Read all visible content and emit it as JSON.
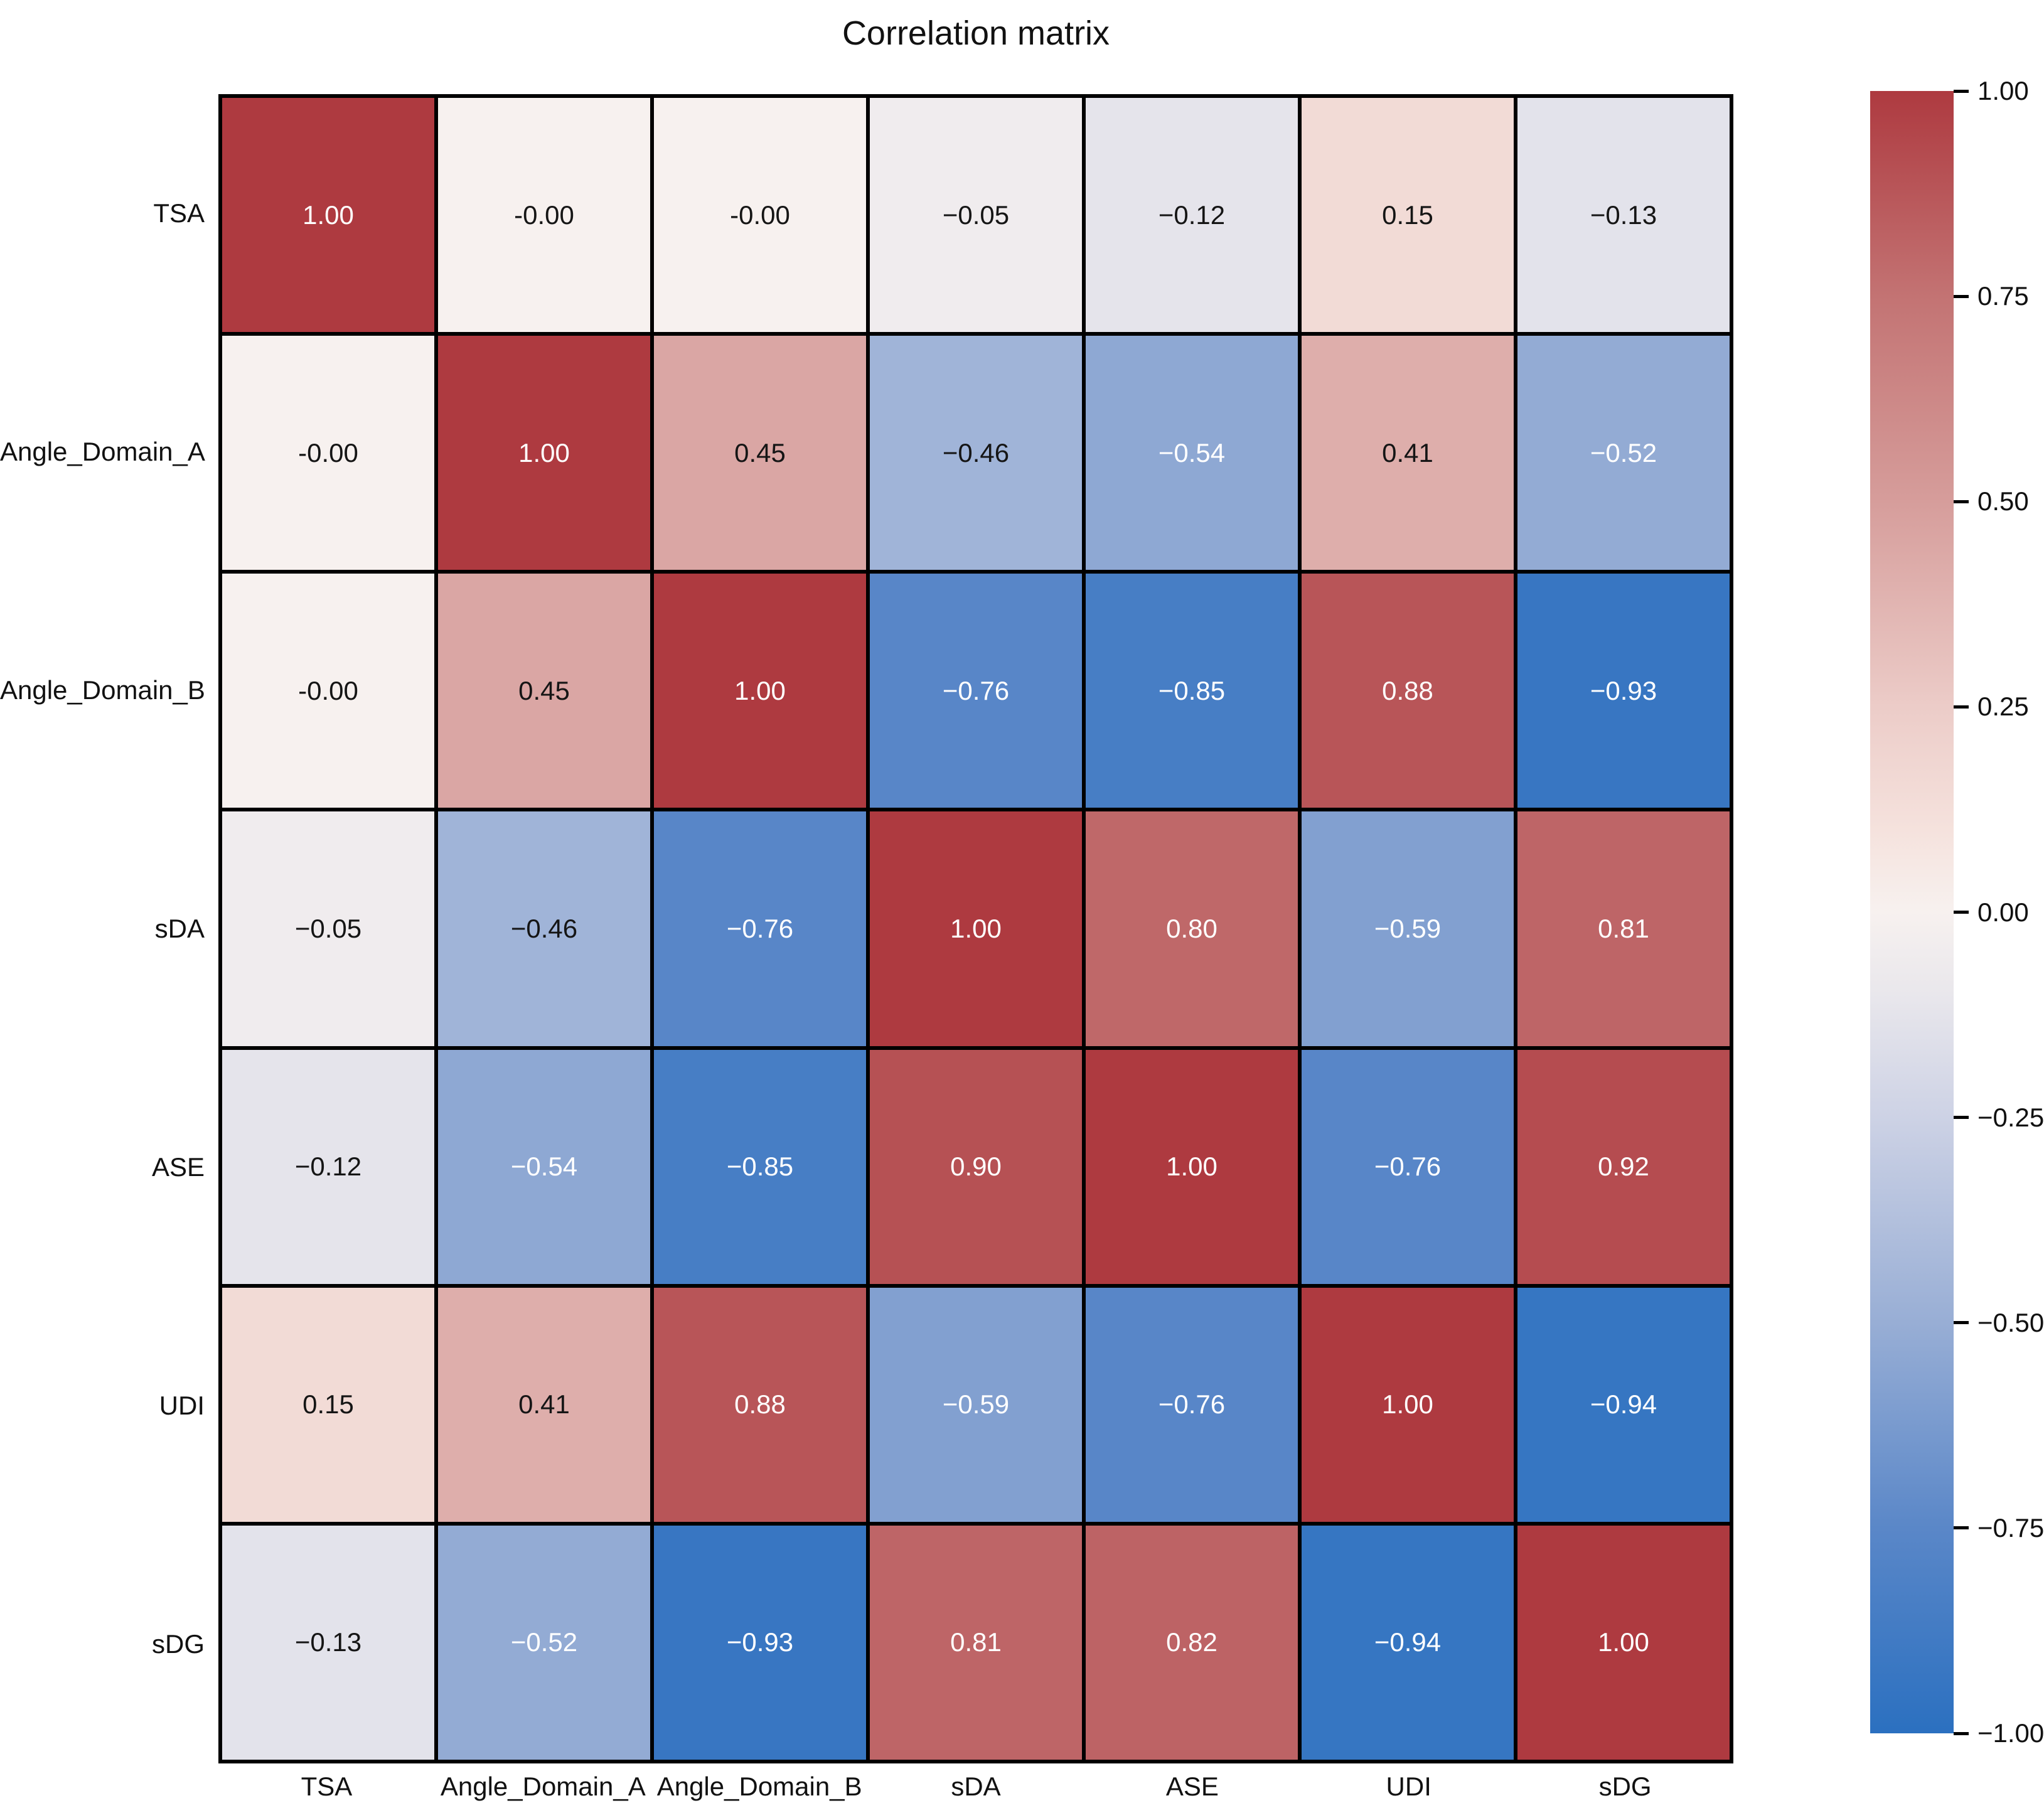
{
  "title": "Correlation matrix",
  "chart_data": {
    "type": "heatmap",
    "title": "Correlation matrix",
    "x_tick_labels": [
      "TSA",
      "Angle_Domain_A",
      "Angle_Domain_B",
      "sDA",
      "ASE",
      "UDI",
      "sDG"
    ],
    "y_tick_labels": [
      "TSA",
      "Angle_Domain_A",
      "Angle_Domain_B",
      "sDA",
      "ASE",
      "UDI",
      "sDG"
    ],
    "matrix": [
      [
        1.0,
        -0.0,
        -0.0,
        -0.05,
        -0.12,
        0.15,
        -0.13
      ],
      [
        -0.0,
        1.0,
        0.45,
        -0.46,
        -0.54,
        0.41,
        -0.52
      ],
      [
        -0.0,
        0.45,
        1.0,
        -0.76,
        -0.85,
        0.88,
        -0.93
      ],
      [
        -0.05,
        -0.46,
        -0.76,
        1.0,
        0.8,
        -0.59,
        0.81
      ],
      [
        -0.12,
        -0.54,
        -0.85,
        0.9,
        1.0,
        -0.76,
        0.92
      ],
      [
        0.15,
        0.41,
        0.88,
        -0.59,
        -0.76,
        1.0,
        -0.94
      ],
      [
        -0.13,
        -0.52,
        -0.93,
        0.81,
        0.82,
        -0.94,
        1.0
      ]
    ],
    "cell_labels": [
      [
        "1.00",
        "-0.00",
        "-0.00",
        "−0.05",
        "−0.12",
        "0.15",
        "−0.13"
      ],
      [
        "-0.00",
        "1.00",
        "0.45",
        "−0.46",
        "−0.54",
        "0.41",
        "−0.52"
      ],
      [
        "-0.00",
        "0.45",
        "1.00",
        "−0.76",
        "−0.85",
        "0.88",
        "−0.93"
      ],
      [
        "−0.05",
        "−0.46",
        "−0.76",
        "1.00",
        "0.80",
        "−0.59",
        "0.81"
      ],
      [
        "−0.12",
        "−0.54",
        "−0.85",
        "0.90",
        "1.00",
        "−0.76",
        "0.92"
      ],
      [
        "0.15",
        "0.41",
        "0.88",
        "−0.59",
        "−0.76",
        "1.00",
        "−0.94"
      ],
      [
        "−0.13",
        "−0.52",
        "−0.93",
        "0.81",
        "0.82",
        "−0.94",
        "1.00"
      ]
    ],
    "colorbar": {
      "position": "right",
      "vmin": -1.0,
      "vmax": 1.0,
      "tick_labels": [
        "1.00",
        "0.75",
        "0.50",
        "0.25",
        "0.00",
        "−0.25",
        "−0.50",
        "−0.75",
        "−1.00"
      ],
      "tick_values": [
        1.0,
        0.75,
        0.5,
        0.25,
        0.0,
        -0.25,
        -0.5,
        -0.75,
        -1.0
      ]
    },
    "colormap_stops": [
      {
        "v": -1.0,
        "color": "#2b70c0"
      },
      {
        "v": -0.75,
        "color": "#5a87c8"
      },
      {
        "v": -0.5,
        "color": "#98aed5"
      },
      {
        "v": -0.25,
        "color": "#cdd2e5"
      },
      {
        "v": -0.1,
        "color": "#e9e7ec"
      },
      {
        "v": 0.0,
        "color": "#f7f1ef"
      },
      {
        "v": 0.1,
        "color": "#f5e2dd"
      },
      {
        "v": 0.25,
        "color": "#ecccc8"
      },
      {
        "v": 0.5,
        "color": "#d69d9b"
      },
      {
        "v": 0.75,
        "color": "#c37373"
      },
      {
        "v": 1.0,
        "color": "#ae3a40"
      }
    ],
    "grid_color": "#000000",
    "annotation_color_dark": "#151515",
    "annotation_color_light": "#ffffff",
    "white_text_threshold": 0.5,
    "grid_on": true
  }
}
